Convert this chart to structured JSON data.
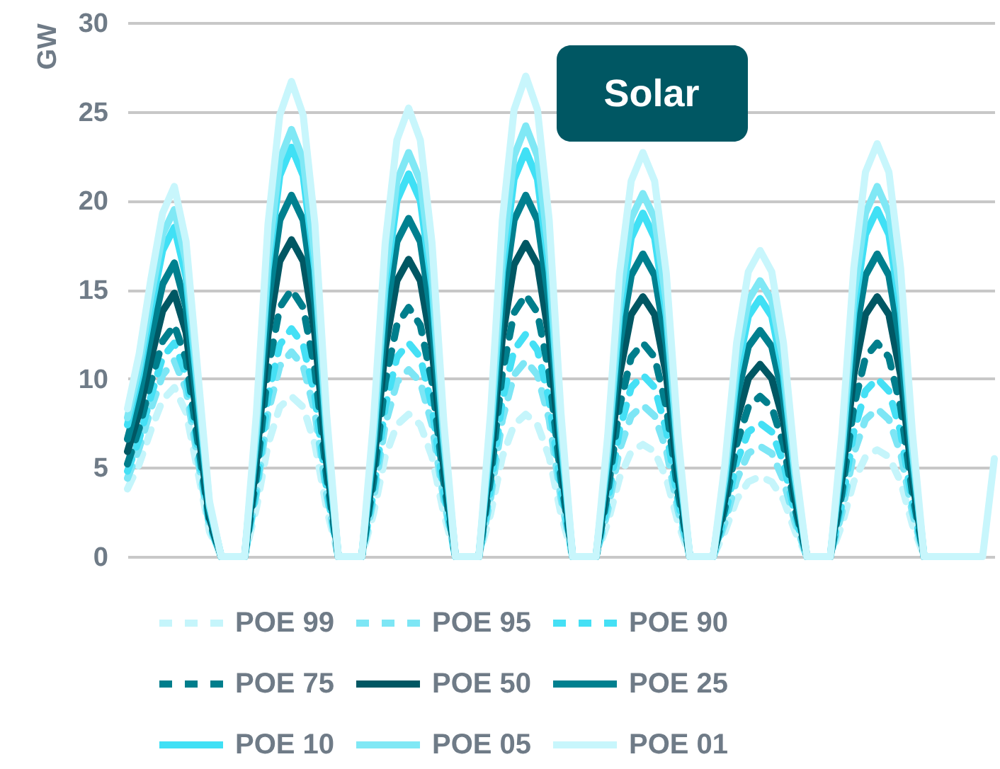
{
  "chart_data": {
    "type": "line",
    "ylabel": "GW",
    "annotations": [
      "Solar"
    ],
    "categories": [
      null,
      null,
      null,
      null,
      null,
      null,
      null,
      null,
      null,
      null,
      null,
      null,
      null,
      null,
      null,
      null,
      null,
      null,
      null,
      null,
      null,
      null,
      null,
      null,
      null,
      null,
      null,
      null,
      null,
      null,
      null,
      null,
      null,
      null,
      null,
      null,
      null,
      null,
      null,
      null,
      null,
      null,
      null,
      null,
      null,
      null,
      null,
      null,
      null,
      null,
      null,
      null,
      null,
      null,
      null,
      null,
      null,
      null,
      null,
      null,
      null,
      null,
      null,
      null,
      null,
      null,
      null,
      null,
      null,
      null,
      null,
      null,
      null,
      null,
      null
    ],
    "ylim": [
      0,
      30
    ],
    "yticks": [
      0,
      5,
      10,
      15,
      20,
      25,
      30
    ],
    "grid": "y",
    "legend": "bottom",
    "series": [
      {
        "name": "POE 99",
        "color": "#c5f5fb",
        "line_style": "dashed",
        "values": [
          3.8,
          5.2,
          7.1,
          8.8,
          9.5,
          8.1,
          4.8,
          1.4,
          0,
          0,
          0,
          2.7,
          6.3,
          8.4,
          9.0,
          8.4,
          6.3,
          2.7,
          0,
          0,
          0,
          2.4,
          5.6,
          7.4,
          8.0,
          7.4,
          5.6,
          2.4,
          0,
          0,
          0,
          2.4,
          5.6,
          7.4,
          8.0,
          7.4,
          5.6,
          2.4,
          0,
          0,
          0,
          1.9,
          4.4,
          5.9,
          6.3,
          5.9,
          4.4,
          1.9,
          0,
          0,
          0,
          1.4,
          3.2,
          4.2,
          4.5,
          4.2,
          3.2,
          1.4,
          0,
          0,
          0,
          1.8,
          4.2,
          5.6,
          6.0,
          5.6,
          4.2,
          1.8,
          0,
          0,
          0,
          null,
          null,
          null,
          null
        ]
      },
      {
        "name": "POE 95",
        "color": "#7de6f5",
        "line_style": "dashed",
        "values": [
          4.4,
          6.1,
          8.3,
          10.2,
          11.0,
          9.4,
          5.5,
          1.7,
          0,
          0,
          0,
          3.5,
          8.1,
          10.7,
          11.5,
          10.7,
          8.1,
          3.5,
          0,
          0,
          0,
          3.2,
          7.4,
          9.8,
          10.5,
          9.8,
          7.4,
          3.2,
          0,
          0,
          0,
          3.3,
          7.7,
          10.2,
          11.0,
          10.2,
          7.7,
          3.3,
          0,
          0,
          0,
          2.6,
          6.0,
          7.9,
          8.5,
          7.9,
          6.0,
          2.6,
          0,
          0,
          0,
          1.9,
          4.3,
          5.8,
          6.2,
          5.8,
          4.3,
          1.9,
          0,
          0,
          0,
          2.5,
          5.8,
          7.7,
          8.3,
          7.7,
          5.8,
          2.5,
          0,
          0,
          0,
          null,
          null,
          null,
          null
        ]
      },
      {
        "name": "POE 90",
        "color": "#45e0f5",
        "line_style": "dashed",
        "values": [
          4.8,
          6.6,
          9.0,
          11.2,
          12.0,
          10.2,
          6.0,
          1.8,
          0,
          0,
          0,
          3.8,
          9.0,
          11.9,
          12.8,
          11.9,
          9.0,
          3.8,
          0,
          0,
          0,
          3.6,
          8.4,
          11.2,
          12.0,
          11.2,
          8.4,
          3.6,
          0,
          0,
          0,
          3.8,
          8.8,
          11.6,
          12.5,
          11.6,
          8.8,
          3.8,
          0,
          0,
          0,
          3.1,
          7.1,
          9.5,
          10.2,
          9.5,
          7.1,
          3.1,
          0,
          0,
          0,
          2.3,
          5.3,
          7.0,
          7.5,
          7.0,
          5.3,
          2.3,
          0,
          0,
          0,
          3.0,
          7.0,
          9.3,
          10.0,
          9.3,
          7.0,
          3.0,
          0,
          0,
          0,
          null,
          null,
          null,
          null
        ]
      },
      {
        "name": "POE 75",
        "color": "#007e8c",
        "line_style": "dashed",
        "values": [
          5.2,
          7.2,
          9.8,
          12.1,
          13.0,
          11.1,
          6.5,
          2.0,
          0,
          0,
          0,
          4.5,
          10.5,
          14.0,
          15.0,
          14.0,
          10.5,
          4.5,
          0,
          0,
          0,
          4.2,
          9.8,
          13.0,
          14.0,
          13.0,
          9.8,
          4.2,
          0,
          0,
          0,
          4.4,
          10.3,
          13.7,
          14.7,
          13.7,
          10.3,
          4.4,
          0,
          0,
          0,
          3.6,
          8.4,
          11.2,
          12.0,
          11.2,
          8.4,
          3.6,
          0,
          0,
          0,
          2.7,
          6.3,
          8.4,
          9.0,
          8.4,
          6.3,
          2.7,
          0,
          0,
          0,
          3.6,
          8.4,
          11.2,
          12.0,
          11.2,
          8.4,
          3.6,
          0,
          0,
          0,
          null,
          null,
          null,
          null
        ]
      },
      {
        "name": "POE 50",
        "color": "#005763",
        "line_style": "solid",
        "values": [
          5.9,
          8.1,
          11.1,
          13.8,
          14.8,
          12.6,
          7.4,
          2.2,
          0,
          0,
          0,
          5.3,
          12.5,
          16.6,
          17.8,
          16.6,
          12.5,
          5.3,
          0,
          0,
          0,
          5.0,
          11.7,
          15.5,
          16.7,
          15.5,
          11.7,
          5.0,
          0,
          0,
          0,
          5.3,
          12.3,
          16.4,
          17.6,
          16.4,
          12.3,
          5.3,
          0,
          0,
          0,
          4.4,
          10.2,
          13.6,
          14.6,
          13.6,
          10.2,
          4.4,
          0,
          0,
          0,
          3.2,
          7.6,
          10.0,
          10.8,
          10.0,
          7.6,
          3.2,
          0,
          0,
          0,
          4.4,
          10.2,
          13.6,
          14.6,
          13.6,
          10.2,
          4.4,
          0,
          0,
          0,
          null,
          null,
          null,
          null
        ]
      },
      {
        "name": "POE 25",
        "color": "#00808f",
        "line_style": "solid",
        "values": [
          6.6,
          9.1,
          12.4,
          15.3,
          16.5,
          14.0,
          8.3,
          2.5,
          0,
          0,
          0,
          6.1,
          14.2,
          18.9,
          20.3,
          18.9,
          14.2,
          6.1,
          0,
          0,
          0,
          5.7,
          13.3,
          17.7,
          19.0,
          17.7,
          13.3,
          5.7,
          0,
          0,
          0,
          6.1,
          14.2,
          18.9,
          20.3,
          18.9,
          14.2,
          6.1,
          0,
          0,
          0,
          5.1,
          11.9,
          15.8,
          17.0,
          15.8,
          11.9,
          5.1,
          0,
          0,
          0,
          3.8,
          8.9,
          11.8,
          12.7,
          11.8,
          8.9,
          3.8,
          0,
          0,
          0,
          5.1,
          11.9,
          15.8,
          17.0,
          15.8,
          11.9,
          5.1,
          0,
          0,
          0,
          null,
          null,
          null,
          null
        ]
      },
      {
        "name": "POE 10",
        "color": "#40e0f5",
        "line_style": "solid",
        "values": [
          7.4,
          10.2,
          13.9,
          17.2,
          18.5,
          15.7,
          9.3,
          2.8,
          0,
          0,
          0,
          6.9,
          16.1,
          21.4,
          23.0,
          21.4,
          16.1,
          6.9,
          0,
          0,
          0,
          6.5,
          15.1,
          20.0,
          21.5,
          20.0,
          15.1,
          6.5,
          0,
          0,
          0,
          6.8,
          16.0,
          21.2,
          22.8,
          21.2,
          16.0,
          6.8,
          0,
          0,
          0,
          5.8,
          13.5,
          17.9,
          19.3,
          17.9,
          13.5,
          5.8,
          0,
          0,
          0,
          4.4,
          10.2,
          13.5,
          14.5,
          13.5,
          10.2,
          4.4,
          0,
          0,
          0,
          5.9,
          13.7,
          18.1,
          19.5,
          18.1,
          13.7,
          5.9,
          0,
          0,
          0,
          null,
          null,
          null,
          null
        ]
      },
      {
        "name": "POE 05",
        "color": "#80e8f5",
        "line_style": "solid",
        "values": [
          7.8,
          10.7,
          14.6,
          18.1,
          19.5,
          16.6,
          9.8,
          2.9,
          0,
          0,
          0,
          7.2,
          16.8,
          22.3,
          24.0,
          22.3,
          16.8,
          7.2,
          0,
          0,
          0,
          6.8,
          15.9,
          21.1,
          22.7,
          21.1,
          15.9,
          6.8,
          0,
          0,
          0,
          7.3,
          16.9,
          22.5,
          24.2,
          22.5,
          16.9,
          7.3,
          0,
          0,
          0,
          6.1,
          14.3,
          19.0,
          20.4,
          19.0,
          14.3,
          6.1,
          0,
          0,
          0,
          4.7,
          10.9,
          14.4,
          15.5,
          14.4,
          10.9,
          4.7,
          0,
          0,
          0,
          6.2,
          14.6,
          19.3,
          20.8,
          19.3,
          14.6,
          6.2,
          0,
          0,
          0,
          null,
          null,
          null,
          null
        ]
      },
      {
        "name": "POE 01",
        "color": "#c8f6fc",
        "line_style": "solid",
        "values": [
          8.3,
          11.4,
          15.6,
          19.3,
          20.8,
          17.7,
          10.4,
          3.1,
          0,
          0,
          0,
          8.0,
          18.7,
          24.8,
          26.7,
          24.8,
          18.7,
          8.0,
          0,
          0,
          0,
          7.6,
          17.6,
          23.4,
          25.2,
          23.4,
          17.6,
          7.6,
          0,
          0,
          0,
          8.1,
          18.9,
          25.1,
          27.0,
          25.1,
          18.9,
          8.1,
          0,
          0,
          0,
          6.8,
          15.9,
          21.1,
          22.7,
          21.1,
          15.9,
          6.8,
          0,
          0,
          0,
          5.2,
          12.0,
          16.0,
          17.2,
          16.0,
          12.0,
          5.2,
          0,
          0,
          0,
          7.0,
          16.2,
          21.6,
          23.2,
          21.6,
          16.2,
          7.0,
          0,
          0,
          0,
          0,
          0,
          0,
          5.5
        ]
      }
    ]
  }
}
